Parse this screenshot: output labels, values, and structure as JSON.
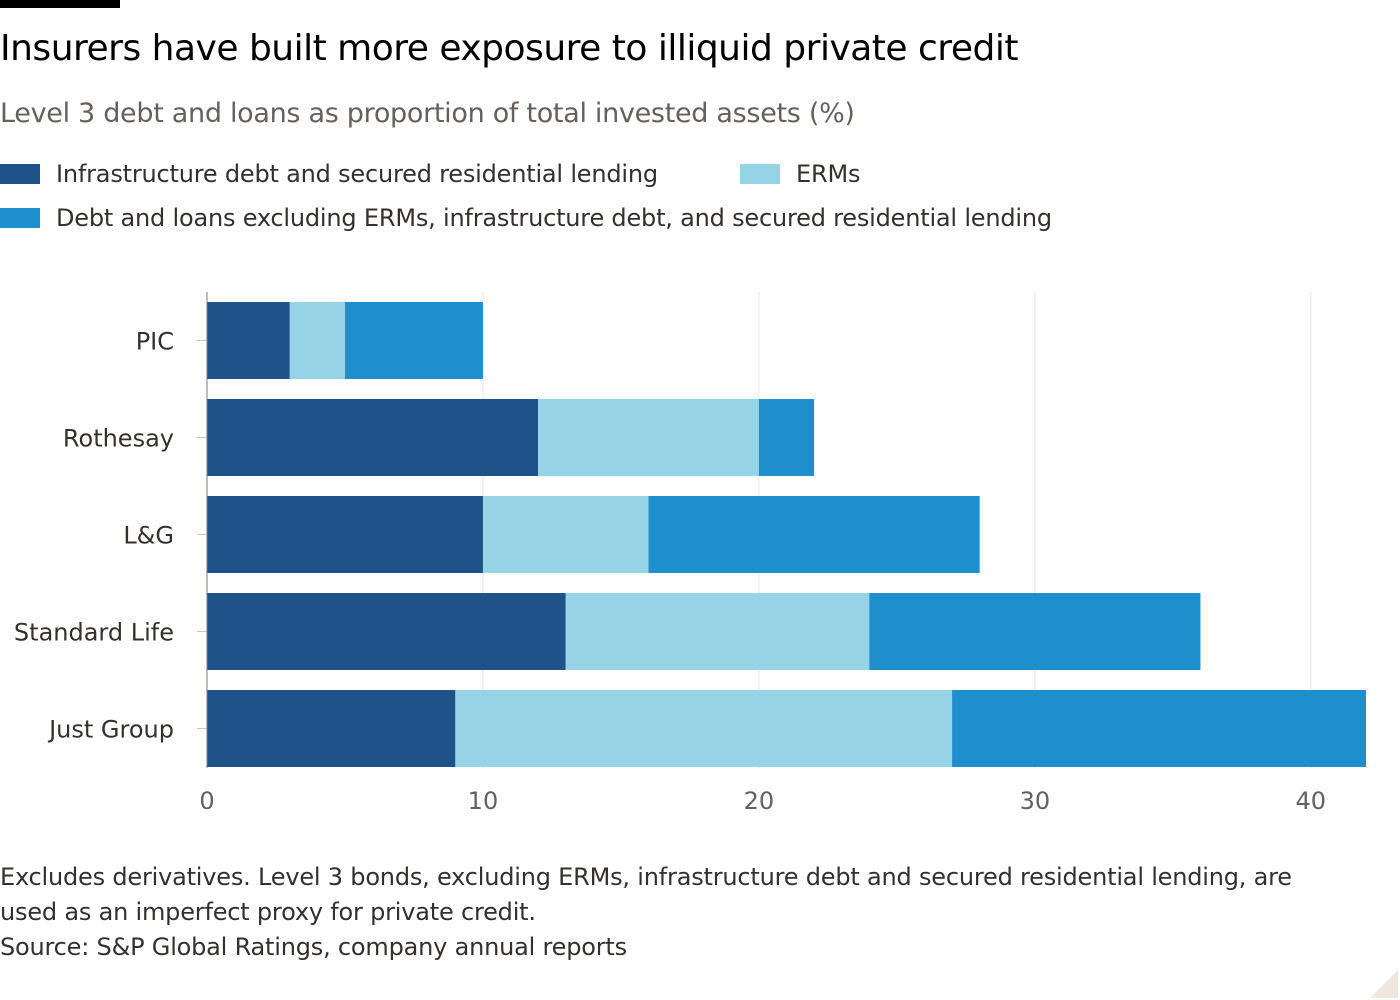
{
  "header": {
    "title": "Insurers have built more exposure to illiquid private credit",
    "subtitle": "Level 3 debt and loans as proportion of total invested assets (%)"
  },
  "legend": {
    "items": [
      {
        "label": "Infrastructure debt and secured residential lending",
        "color": "#1f5289"
      },
      {
        "label": "ERMs",
        "color": "#96d3e6"
      },
      {
        "label": "Debt and loans excluding ERMs, infrastructure debt, and secured residential lending",
        "color": "#1f8ecd"
      }
    ]
  },
  "chart_data": {
    "type": "bar",
    "orientation": "horizontal",
    "stacked": true,
    "categories": [
      "PIC",
      "Rothesay",
      "L&G",
      "Standard Life",
      "Just Group"
    ],
    "series": [
      {
        "name": "Infrastructure debt and secured residential lending",
        "color": "#1f5289",
        "values": [
          3,
          12,
          10,
          13,
          9
        ]
      },
      {
        "name": "ERMs",
        "color": "#96d3e6",
        "values": [
          2,
          8,
          6,
          11,
          18
        ]
      },
      {
        "name": "Debt and loans excluding ERMs, infrastructure debt, and secured residential lending",
        "color": "#1f8ecd",
        "values": [
          5,
          2,
          12,
          12,
          15
        ]
      }
    ],
    "xlim": [
      0,
      42
    ],
    "xticks": [
      0,
      10,
      20,
      30,
      40
    ],
    "grid": true
  },
  "footer": {
    "note_line1": "Excludes derivatives. Level 3 bonds, excluding ERMs, infrastructure debt and secured residential lending, are",
    "note_line2": "used as an imperfect proxy for private credit.",
    "source": "Source: S&P Global Ratings, company annual reports"
  }
}
